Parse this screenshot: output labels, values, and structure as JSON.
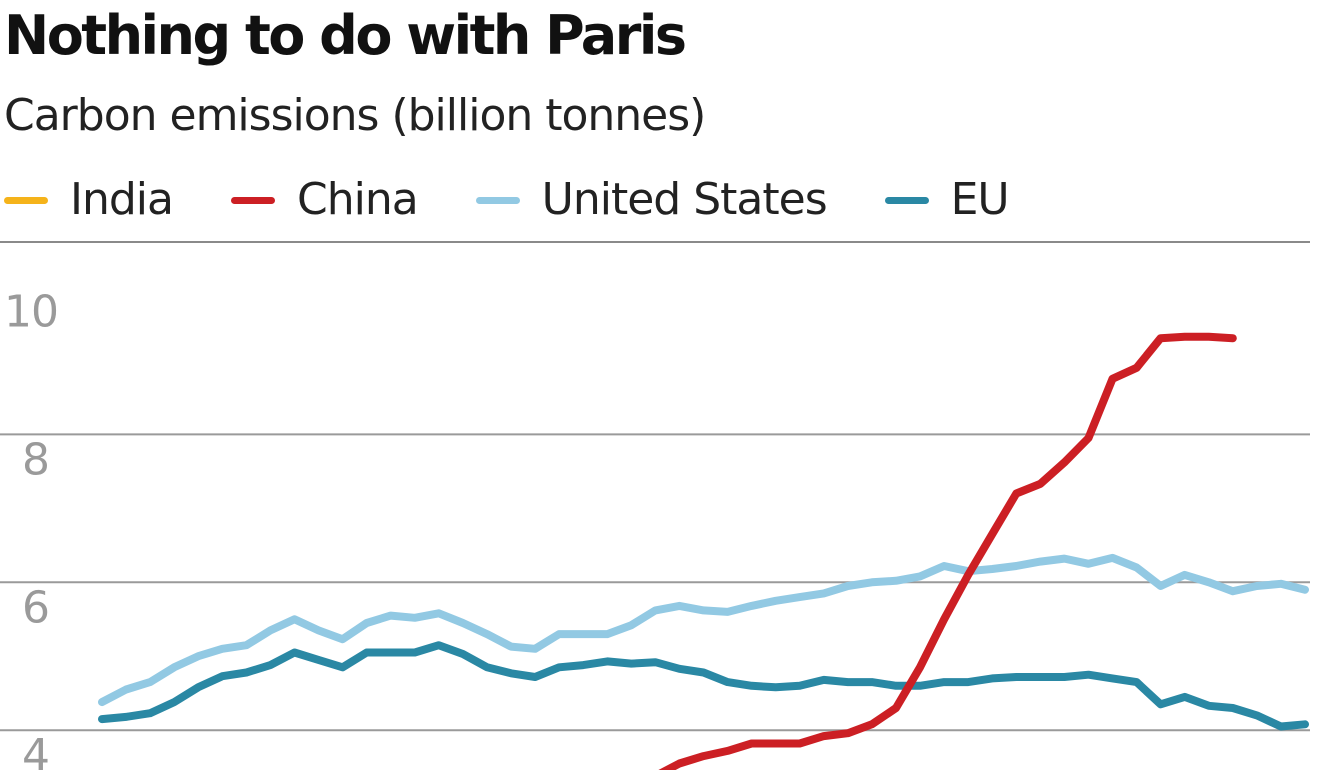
{
  "title": "Nothing to do with Paris",
  "subtitle": "Carbon emissions (billion tonnes)",
  "legend": [
    {
      "name": "India",
      "color": "#f5b31a"
    },
    {
      "name": "China",
      "color": "#cc1f24"
    },
    {
      "name": "United States",
      "color": "#92c9e3"
    },
    {
      "name": "EU",
      "color": "#2a88a4"
    }
  ],
  "chart_data": {
    "type": "line",
    "title": "Nothing to do with Paris",
    "ylabel": "Carbon emissions (billion tonnes)",
    "xlabel": "",
    "ylim": [
      3.3,
      10.6
    ],
    "yticks": [
      4,
      6,
      8,
      10
    ],
    "ytick_labels": [
      "4",
      "6",
      "8",
      "10"
    ],
    "grid": true,
    "legend_position": "top",
    "x": [
      1965,
      1966,
      1967,
      1968,
      1969,
      1970,
      1971,
      1972,
      1973,
      1974,
      1975,
      1976,
      1977,
      1978,
      1979,
      1980,
      1981,
      1982,
      1983,
      1984,
      1985,
      1986,
      1987,
      1988,
      1989,
      1990,
      1991,
      1992,
      1993,
      1994,
      1995,
      1996,
      1997,
      1998,
      1999,
      2000,
      2001,
      2002,
      2003,
      2004,
      2005,
      2006,
      2007,
      2008,
      2009,
      2010,
      2011,
      2012,
      2013,
      2014,
      2015
    ],
    "series": [
      {
        "name": "India",
        "color": "#f5b31a",
        "values": [
          null,
          null,
          null,
          null,
          null,
          null,
          null,
          null,
          null,
          null,
          null,
          null,
          null,
          null,
          null,
          null,
          null,
          null,
          null,
          null,
          null,
          null,
          null,
          null,
          null,
          null,
          null,
          null,
          null,
          null,
          null,
          null,
          null,
          null,
          null,
          null,
          null,
          null,
          null,
          null,
          null,
          null,
          null,
          null,
          null,
          null,
          null,
          null,
          null,
          null,
          null
        ]
      },
      {
        "name": "China",
        "color": "#cc1f24",
        "values": [
          null,
          null,
          null,
          null,
          null,
          null,
          null,
          null,
          null,
          null,
          null,
          null,
          null,
          null,
          null,
          null,
          null,
          null,
          null,
          null,
          null,
          null,
          3.3,
          3.38,
          3.55,
          3.65,
          3.72,
          3.82,
          3.82,
          3.82,
          3.92,
          3.96,
          4.08,
          4.3,
          4.85,
          5.5,
          6.1,
          6.65,
          7.2,
          7.33,
          7.62,
          7.95,
          8.75,
          8.9,
          9.3,
          9.32,
          9.32,
          9.3,
          null,
          null,
          null
        ]
      },
      {
        "name": "United States",
        "color": "#92c9e3",
        "values": [
          4.38,
          4.55,
          4.65,
          4.85,
          5.0,
          5.1,
          5.15,
          5.35,
          5.5,
          5.35,
          5.23,
          5.45,
          5.55,
          5.52,
          5.58,
          5.45,
          5.3,
          5.13,
          5.1,
          5.3,
          5.3,
          5.3,
          5.42,
          5.62,
          5.68,
          5.62,
          5.6,
          5.68,
          5.75,
          5.8,
          5.85,
          5.95,
          6.0,
          6.02,
          6.08,
          6.22,
          6.15,
          6.18,
          6.22,
          6.28,
          6.32,
          6.25,
          6.33,
          6.2,
          5.95,
          6.1,
          6.0,
          5.88,
          5.95,
          5.98,
          5.9
        ]
      },
      {
        "name": "EU",
        "color": "#2a88a4",
        "values": [
          4.15,
          4.18,
          4.23,
          4.38,
          4.58,
          4.73,
          4.78,
          4.88,
          5.05,
          4.95,
          4.85,
          5.05,
          5.05,
          5.05,
          5.15,
          5.03,
          4.85,
          4.77,
          4.72,
          4.85,
          4.88,
          4.93,
          4.9,
          4.92,
          4.83,
          4.78,
          4.65,
          4.6,
          4.58,
          4.6,
          4.68,
          4.65,
          4.65,
          4.6,
          4.6,
          4.65,
          4.65,
          4.7,
          4.72,
          4.72,
          4.72,
          4.75,
          4.7,
          4.65,
          4.35,
          4.45,
          4.33,
          4.3,
          4.2,
          4.05,
          4.08
        ]
      }
    ]
  }
}
